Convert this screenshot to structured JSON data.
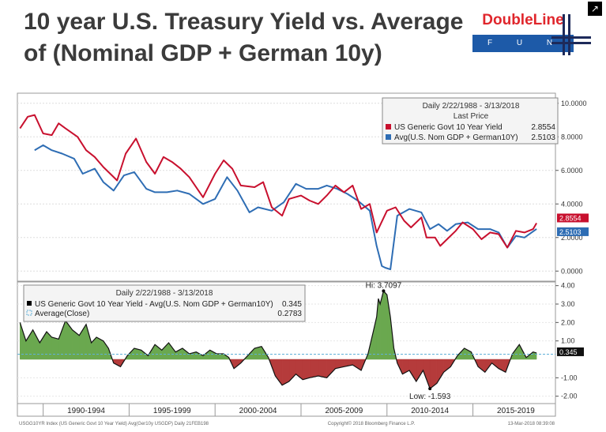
{
  "title": "10 year U.S. Treasury Yield vs. Average of (Nominal GDP + German 10y)",
  "logo": {
    "brand": "DoubleLine",
    "sub": "F U N D S"
  },
  "expand_icon": "expand-icon",
  "chart_data": [
    {
      "type": "line",
      "legend": {
        "header": "Daily 2/22/1988 - 3/13/2018",
        "subheader": "Last Price",
        "entries": [
          {
            "label": "US Generic Govt 10 Year Yield",
            "value": "2.8554"
          },
          {
            "label": "Avg(U.S. Nom GDP + German10Y)",
            "value": "2.5103"
          }
        ]
      },
      "ylim": [
        -0.6,
        10.6
      ],
      "y_ticks": [
        "10.0000",
        "8.0000",
        "6.0000",
        "4.0000",
        "2.0000",
        "0.0000"
      ],
      "y_tick_values": [
        10,
        8,
        6,
        4,
        2,
        0
      ],
      "end_labels": [
        "2.8554",
        "2.5103"
      ],
      "series": [
        {
          "name": "US Generic Govt 10 Year Yield",
          "color": "#c8102e",
          "x": [
            1988.15,
            1988.6,
            1989.0,
            1989.5,
            1990.0,
            1990.4,
            1990.8,
            1991.5,
            1992.0,
            1992.5,
            1993.0,
            1993.5,
            1993.8,
            1994.3,
            1994.9,
            1995.5,
            1996.0,
            1996.5,
            1997.0,
            1997.5,
            1998.0,
            1998.8,
            1999.5,
            2000.0,
            2000.5,
            2001.0,
            2001.8,
            2002.3,
            2002.8,
            2003.4,
            2003.8,
            2004.5,
            2005.0,
            2005.5,
            2006.0,
            2006.5,
            2007.0,
            2007.5,
            2008.0,
            2008.5,
            2008.9,
            2009.5,
            2010.0,
            2010.5,
            2010.9,
            2011.5,
            2011.8,
            2012.3,
            2012.6,
            2013.0,
            2013.5,
            2013.9,
            2014.5,
            2015.0,
            2015.5,
            2016.0,
            2016.5,
            2017.0,
            2017.5,
            2018.0,
            2018.2
          ],
          "values": [
            8.5,
            9.2,
            9.3,
            8.2,
            8.1,
            8.8,
            8.5,
            8.0,
            7.2,
            6.8,
            6.2,
            5.7,
            5.4,
            7.0,
            7.9,
            6.5,
            5.8,
            6.8,
            6.5,
            6.1,
            5.6,
            4.4,
            5.8,
            6.6,
            6.1,
            5.1,
            5.0,
            5.3,
            3.8,
            3.3,
            4.3,
            4.5,
            4.2,
            4.0,
            4.5,
            5.1,
            4.7,
            5.1,
            3.7,
            4.0,
            2.3,
            3.6,
            3.8,
            3.0,
            2.6,
            3.2,
            2.0,
            2.0,
            1.5,
            1.9,
            2.4,
            2.9,
            2.5,
            1.9,
            2.3,
            2.2,
            1.4,
            2.4,
            2.3,
            2.5,
            2.86
          ]
        },
        {
          "name": "Avg(U.S. Nom GDP + German10Y)",
          "color": "#2e6db4",
          "x": [
            1989.0,
            1989.5,
            1990.0,
            1990.6,
            1991.3,
            1991.8,
            1992.5,
            1993.0,
            1993.6,
            1994.2,
            1994.8,
            1995.5,
            1996.0,
            1996.7,
            1997.3,
            1998.0,
            1998.8,
            1999.5,
            2000.2,
            2000.8,
            2001.5,
            2002.0,
            2002.8,
            2003.5,
            2004.2,
            2004.8,
            2005.5,
            2006.0,
            2006.6,
            2007.2,
            2007.8,
            2008.5,
            2008.9,
            2009.2,
            2009.4,
            2009.7,
            2010.1,
            2010.8,
            2011.5,
            2012.0,
            2012.5,
            2013.0,
            2013.5,
            2014.2,
            2014.8,
            2015.5,
            2016.0,
            2016.5,
            2017.0,
            2017.5,
            2018.2
          ],
          "values": [
            7.2,
            7.5,
            7.2,
            7.0,
            6.7,
            5.8,
            6.1,
            5.3,
            4.8,
            5.7,
            5.9,
            4.9,
            4.7,
            4.7,
            4.8,
            4.6,
            4.0,
            4.3,
            5.6,
            4.8,
            3.5,
            3.8,
            3.6,
            4.1,
            5.2,
            4.9,
            4.9,
            5.1,
            4.9,
            4.6,
            4.2,
            3.6,
            1.5,
            0.3,
            0.2,
            0.1,
            3.3,
            3.7,
            3.5,
            2.5,
            2.8,
            2.4,
            2.8,
            2.9,
            2.5,
            2.5,
            2.3,
            1.4,
            2.1,
            2.0,
            2.51
          ]
        }
      ]
    },
    {
      "type": "area",
      "legend": {
        "header": "Daily 2/22/1988 - 3/13/2018",
        "entries": [
          {
            "label": "US Generic Govt 10 Year Yield - Avg(U.S. Nom GDP + German10Y)",
            "value": "0.345"
          },
          {
            "label": "Average(Close)",
            "value": "0.2783"
          }
        ]
      },
      "ylim": [
        -2.4,
        4.2
      ],
      "y_ticks": [
        "4.00",
        "3.00",
        "2.00",
        "1.00",
        "-1.00",
        "-2.00"
      ],
      "y_tick_values": [
        4,
        3,
        2,
        1,
        -1,
        -2
      ],
      "average_line": 0.2783,
      "last_value_label": "0.345",
      "hi_label": "Hi: 3.7097",
      "low_label": "Low: -1.593",
      "x_tick_labels": [
        "1990-1994",
        "1995-1999",
        "2000-2004",
        "2005-2009",
        "2010-2014",
        "2015-2019"
      ],
      "x_tick_centers": [
        1992.0,
        1997.0,
        2002.0,
        2007.0,
        2012.0,
        2017.0
      ],
      "x_tick_bounds": [
        1989.5,
        1994.5,
        1999.5,
        2004.5,
        2009.5,
        2014.5,
        2019.5
      ],
      "colors": {
        "positive": "#6aa84f",
        "negative": "#b53b3b"
      },
      "series": [
        {
          "name": "US Generic Govt 10 Year Yield - Avg(U.S. Nom GDP + German10Y)",
          "x": [
            1988.15,
            1988.5,
            1988.9,
            1989.3,
            1989.7,
            1990.0,
            1990.4,
            1990.8,
            1991.2,
            1991.6,
            1992.0,
            1992.3,
            1992.6,
            1993.0,
            1993.3,
            1993.6,
            1994.0,
            1994.4,
            1994.8,
            1995.2,
            1995.6,
            1996.0,
            1996.4,
            1996.8,
            1997.2,
            1997.6,
            1998.0,
            1998.4,
            1998.8,
            1999.2,
            1999.6,
            2000.0,
            2000.3,
            2000.6,
            2001.0,
            2001.4,
            2001.8,
            2002.2,
            2002.6,
            2003.0,
            2003.4,
            2003.8,
            2004.2,
            2004.6,
            2005.0,
            2005.5,
            2006.0,
            2006.5,
            2007.0,
            2007.5,
            2008.0,
            2008.4,
            2008.7,
            2008.9,
            2009.0,
            2009.1,
            2009.3,
            2009.5,
            2009.7,
            2009.9,
            2010.1,
            2010.4,
            2010.8,
            2011.2,
            2011.6,
            2012.0,
            2012.4,
            2012.8,
            2013.2,
            2013.6,
            2014.0,
            2014.4,
            2014.8,
            2015.2,
            2015.6,
            2016.0,
            2016.4,
            2016.8,
            2017.2,
            2017.6,
            2018.0,
            2018.2
          ],
          "values": [
            2.0,
            1.0,
            1.6,
            0.9,
            1.5,
            1.2,
            1.1,
            2.1,
            1.6,
            1.3,
            1.9,
            0.9,
            1.2,
            1.0,
            0.6,
            -0.2,
            -0.4,
            0.2,
            0.6,
            0.5,
            0.2,
            0.8,
            0.5,
            0.9,
            0.4,
            0.6,
            0.3,
            0.4,
            0.2,
            0.5,
            0.3,
            0.3,
            0.1,
            -0.5,
            -0.2,
            0.2,
            0.6,
            0.7,
            0.1,
            -0.9,
            -1.4,
            -1.2,
            -0.8,
            -1.1,
            -1.0,
            -0.9,
            -1.0,
            -0.5,
            -0.4,
            -0.3,
            -0.6,
            0.3,
            1.5,
            2.3,
            3.3,
            3.0,
            3.71,
            3.5,
            2.3,
            0.6,
            -0.2,
            -0.8,
            -0.6,
            -1.2,
            -0.6,
            -1.593,
            -1.3,
            -0.7,
            -0.4,
            0.2,
            0.6,
            0.4,
            -0.4,
            -0.7,
            -0.2,
            -0.5,
            -0.7,
            0.3,
            0.8,
            0.1,
            0.4,
            0.345
          ]
        }
      ]
    }
  ],
  "footer": {
    "left": "USGG10YR Index (US Generic Govt 10 Year Yield) Avg(Ger10y USGDP)  Daily 21FEB198",
    "center": "Copyright© 2018 Bloomberg Finance L.P.",
    "right": "13-Mar-2018 08:39:08"
  }
}
